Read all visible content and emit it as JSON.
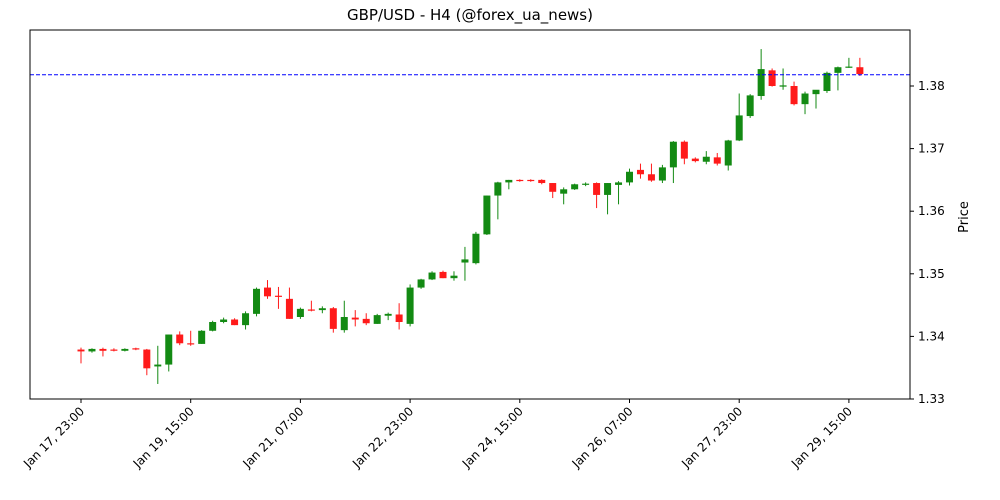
{
  "chart_data": {
    "type": "candlestick",
    "title": "GBP/USD - H4 (@forex_ua_news)",
    "xlabel": "",
    "ylabel": "Price",
    "ylim": [
      1.33,
      1.389
    ],
    "yticks": [
      "1.33",
      "1.34",
      "1.35",
      "1.36",
      "1.37",
      "1.38"
    ],
    "xticks": [
      "Jan 17, 23:00",
      "Jan 19, 15:00",
      "Jan 21, 07:00",
      "Jan 22, 23:00",
      "Jan 24, 15:00",
      "Jan 26, 07:00",
      "Jan 27, 23:00",
      "Jan 29, 15:00"
    ],
    "reference_line": {
      "value": 1.3818,
      "style": "dashed",
      "color": "#0000ff"
    },
    "colors": {
      "up": "#138a13",
      "down": "#ff1a1a"
    },
    "grid": false,
    "candles": [
      [
        1.3379,
        1.3382,
        1.3357,
        1.3376
      ],
      [
        1.3376,
        1.3381,
        1.3374,
        1.338
      ],
      [
        1.338,
        1.3382,
        1.3368,
        1.3377
      ],
      [
        1.3379,
        1.3381,
        1.3376,
        1.3378
      ],
      [
        1.3377,
        1.3381,
        1.3376,
        1.338
      ],
      [
        1.3381,
        1.3382,
        1.3378,
        1.338
      ],
      [
        1.3379,
        1.338,
        1.3338,
        1.3349
      ],
      [
        1.3352,
        1.3385,
        1.3324,
        1.3355
      ],
      [
        1.3355,
        1.3403,
        1.3344,
        1.3403
      ],
      [
        1.3403,
        1.3408,
        1.3386,
        1.3389
      ],
      [
        1.3389,
        1.3409,
        1.3385,
        1.3388
      ],
      [
        1.3388,
        1.341,
        1.3388,
        1.3409
      ],
      [
        1.3409,
        1.3425,
        1.3408,
        1.3423
      ],
      [
        1.3423,
        1.343,
        1.3421,
        1.3427
      ],
      [
        1.3427,
        1.3429,
        1.3418,
        1.3418
      ],
      [
        1.3418,
        1.344,
        1.3411,
        1.3437
      ],
      [
        1.3436,
        1.3478,
        1.3432,
        1.3476
      ],
      [
        1.3478,
        1.349,
        1.346,
        1.3464
      ],
      [
        1.3465,
        1.3479,
        1.3444,
        1.3464
      ],
      [
        1.346,
        1.3478,
        1.3428,
        1.3428
      ],
      [
        1.3431,
        1.3446,
        1.3428,
        1.3444
      ],
      [
        1.3443,
        1.3457,
        1.344,
        1.3442
      ],
      [
        1.3442,
        1.3448,
        1.3437,
        1.3445
      ],
      [
        1.3445,
        1.3447,
        1.3406,
        1.3412
      ],
      [
        1.341,
        1.3457,
        1.3406,
        1.3431
      ],
      [
        1.343,
        1.3442,
        1.3416,
        1.3427
      ],
      [
        1.3428,
        1.3437,
        1.3418,
        1.3421
      ],
      [
        1.342,
        1.3436,
        1.342,
        1.3434
      ],
      [
        1.3433,
        1.3438,
        1.3426,
        1.3436
      ],
      [
        1.3435,
        1.3453,
        1.3411,
        1.3423
      ],
      [
        1.342,
        1.3483,
        1.3416,
        1.3478
      ],
      [
        1.3478,
        1.3492,
        1.3476,
        1.3491
      ],
      [
        1.3491,
        1.3504,
        1.349,
        1.3502
      ],
      [
        1.3503,
        1.3505,
        1.3493,
        1.3493
      ],
      [
        1.3493,
        1.3504,
        1.3489,
        1.3497
      ],
      [
        1.3518,
        1.3543,
        1.3489,
        1.3523
      ],
      [
        1.3517,
        1.3567,
        1.3515,
        1.3564
      ],
      [
        1.3563,
        1.3625,
        1.3562,
        1.3625
      ],
      [
        1.3625,
        1.3647,
        1.3587,
        1.3646
      ],
      [
        1.3646,
        1.365,
        1.3635,
        1.365
      ],
      [
        1.365,
        1.3651,
        1.3647,
        1.3649
      ],
      [
        1.365,
        1.3651,
        1.3647,
        1.3649
      ],
      [
        1.365,
        1.3651,
        1.3643,
        1.3645
      ],
      [
        1.3645,
        1.3645,
        1.3621,
        1.3631
      ],
      [
        1.3628,
        1.3638,
        1.3611,
        1.3635
      ],
      [
        1.3635,
        1.3644,
        1.3634,
        1.3643
      ],
      [
        1.3643,
        1.3646,
        1.364,
        1.3644
      ],
      [
        1.3645,
        1.3646,
        1.3605,
        1.3626
      ],
      [
        1.3626,
        1.3645,
        1.3595,
        1.3645
      ],
      [
        1.3642,
        1.3648,
        1.3611,
        1.3646
      ],
      [
        1.3646,
        1.3668,
        1.3641,
        1.3663
      ],
      [
        1.3666,
        1.3676,
        1.3652,
        1.3659
      ],
      [
        1.3659,
        1.3676,
        1.3647,
        1.3649
      ],
      [
        1.3649,
        1.3674,
        1.3645,
        1.367
      ],
      [
        1.367,
        1.3712,
        1.3645,
        1.3711
      ],
      [
        1.3711,
        1.3713,
        1.3675,
        1.3684
      ],
      [
        1.3684,
        1.3686,
        1.3678,
        1.368
      ],
      [
        1.3679,
        1.3696,
        1.3675,
        1.3687
      ],
      [
        1.3686,
        1.3693,
        1.3673,
        1.3676
      ],
      [
        1.3673,
        1.3714,
        1.3665,
        1.3713
      ],
      [
        1.3713,
        1.3788,
        1.3712,
        1.3753
      ],
      [
        1.3752,
        1.3787,
        1.3749,
        1.3785
      ],
      [
        1.3784,
        1.3859,
        1.3778,
        1.3827
      ],
      [
        1.3825,
        1.3828,
        1.3799,
        1.38
      ],
      [
        1.3799,
        1.3828,
        1.3794,
        1.3801
      ],
      [
        1.38,
        1.3807,
        1.3769,
        1.3771
      ],
      [
        1.3771,
        1.3791,
        1.3755,
        1.3788
      ],
      [
        1.3787,
        1.3793,
        1.3764,
        1.3794
      ],
      [
        1.3792,
        1.3823,
        1.3789,
        1.3821
      ],
      [
        1.3821,
        1.3831,
        1.3793,
        1.383
      ],
      [
        1.383,
        1.3845,
        1.3829,
        1.3831
      ],
      [
        1.383,
        1.3845,
        1.3816,
        1.3819
      ]
    ]
  }
}
